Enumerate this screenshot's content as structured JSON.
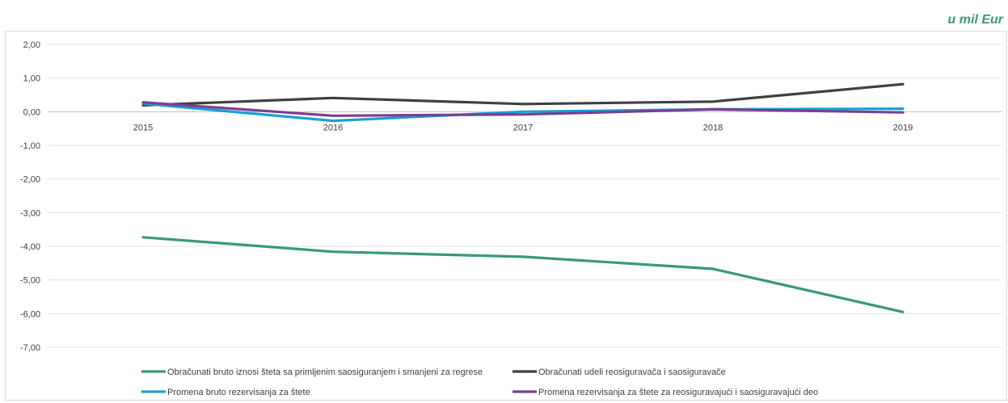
{
  "unit_label": "u mil Eur",
  "chart_data": {
    "type": "line",
    "categories": [
      "2015",
      "2016",
      "2017",
      "2018",
      "2019"
    ],
    "ylim": [
      -7,
      2
    ],
    "ytick_labels": [
      "2,00",
      "1,00",
      "0,00",
      "-1,00",
      "-2,00",
      "-3,00",
      "-4,00",
      "-5,00",
      "-6,00",
      "-7,00"
    ],
    "yticks": [
      2,
      1,
      0,
      -1,
      -2,
      -3,
      -4,
      -5,
      -6,
      -7
    ],
    "grid": true,
    "legend_position": "bottom",
    "series": [
      {
        "name": "Obračunati bruto iznosi šteta sa primljenim saosiguranjem i smanjeni za regrese",
        "color": "#3a9a72",
        "values": [
          -3.73,
          -4.16,
          -4.31,
          -4.67,
          -5.95
        ]
      },
      {
        "name": "Obračunati udeli reosiguravača i saosiguravače",
        "color": "#404040",
        "values": [
          0.19,
          0.41,
          0.23,
          0.3,
          0.82
        ]
      },
      {
        "name": "Promena bruto rezervisanja za štete",
        "color": "#1a9fd6",
        "values": [
          0.24,
          -0.27,
          0.0,
          0.07,
          0.09
        ]
      },
      {
        "name": "Promena rezervisanja za štete za reosiguravajući i saosiguravajući deo",
        "color": "#7a3f91",
        "values": [
          0.28,
          -0.12,
          -0.08,
          0.07,
          -0.02
        ]
      }
    ]
  }
}
